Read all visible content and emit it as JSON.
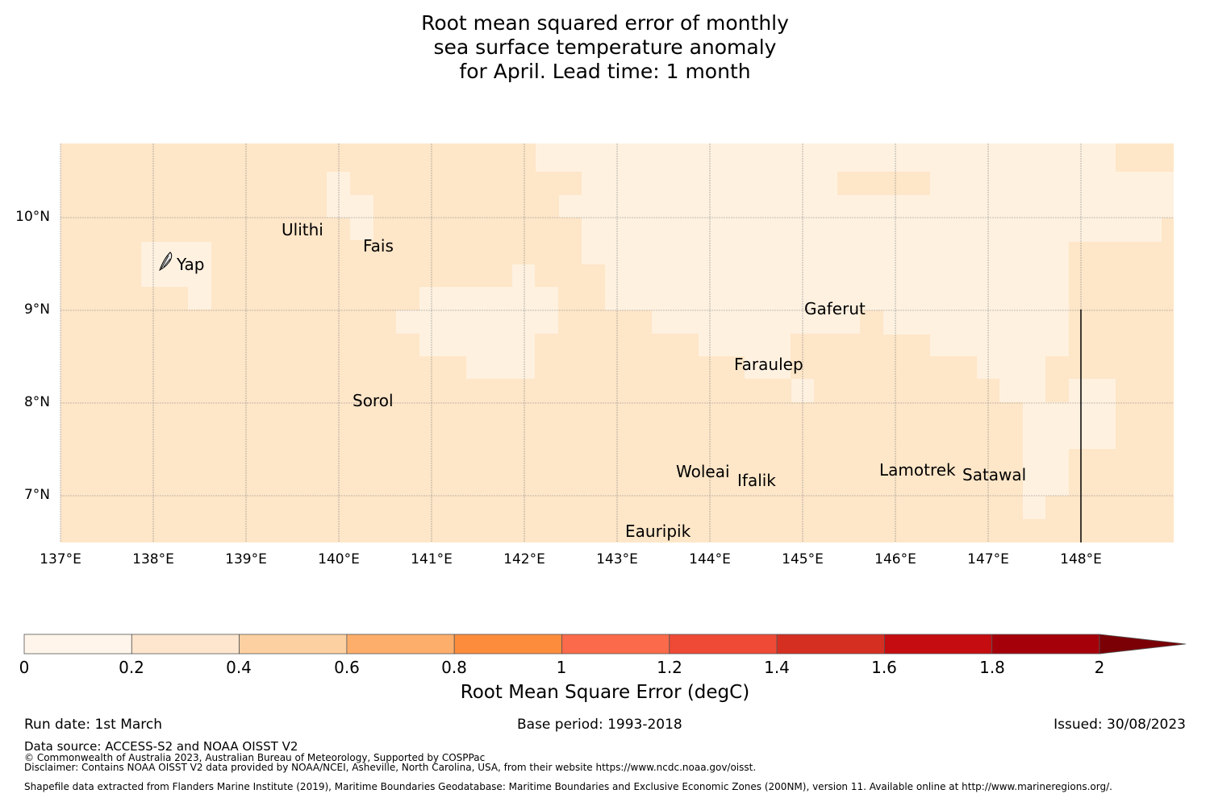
{
  "title": {
    "line1": "Root mean squared error of monthly",
    "line2": "sea surface temperature anomaly",
    "line3": "for April. Lead time: 1 month"
  },
  "map": {
    "lon_range": [
      137,
      149
    ],
    "lat_range": [
      6.5,
      10.8
    ],
    "lon_ticks": [
      "137°E",
      "138°E",
      "139°E",
      "140°E",
      "141°E",
      "142°E",
      "143°E",
      "144°E",
      "145°E",
      "146°E",
      "147°E",
      "148°E"
    ],
    "lat_ticks": [
      "10°N",
      "9°N",
      "8°N",
      "7°N"
    ],
    "colors": {
      "base": "#fee6c8",
      "light": "#fef1e0",
      "grid": "#888888"
    },
    "islands": [
      {
        "name": "Yap"
      },
      {
        "name": "Ulithi"
      },
      {
        "name": "Fais"
      },
      {
        "name": "Gaferut"
      },
      {
        "name": "Faraulep"
      },
      {
        "name": "Sorol"
      },
      {
        "name": "Woleai"
      },
      {
        "name": "Ifalik"
      },
      {
        "name": "Lamotrek"
      },
      {
        "name": "Satawal"
      },
      {
        "name": "Eauripik"
      }
    ],
    "yap_icon": "yap-island-icon"
  },
  "colorbar": {
    "label": "Root Mean Square Error (degC)",
    "ticks": [
      "0",
      "0.2",
      "0.4",
      "0.6",
      "0.8",
      "1",
      "1.2",
      "1.4",
      "1.6",
      "1.8",
      "2"
    ],
    "colors": [
      "#fff5eb",
      "#fee6ce",
      "#fdd0a2",
      "#fdae6b",
      "#fd8d3c",
      "#fb6a4a",
      "#ef4a36",
      "#d52f22",
      "#c50c10",
      "#a50009",
      "#7a0006"
    ]
  },
  "footer": {
    "run_date": "Run date: 1st March",
    "base_period": "Base period: 1993-2018",
    "issued": "Issued: 30/08/2023",
    "data_source": "Data source: ACCESS-S2 and NOAA OISST V2",
    "copyright": "© Commonwealth of Australia 2023, Australian Bureau of Meteorology, Supported by COSPPac",
    "disclaimer": "Disclaimer: Contains NOAA OISST V2 data provided by NOAA/NCEI, Asheville, North Carolina, USA, from their website https://www.ncdc.noaa.gov/oisst.",
    "shapefile": "Shapefile data extracted from Flanders Marine Institute (2019), Maritime Boundaries Geodatabase: Maritime Boundaries and Exclusive Economic Zones (200NM), version 11. Available online at http://www.marineregions.org/."
  }
}
